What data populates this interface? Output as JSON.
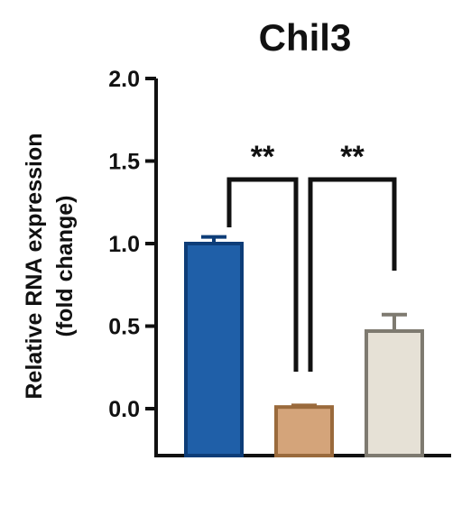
{
  "chart_data": {
    "type": "bar",
    "title": "Chil3",
    "ylabel": "Relative RNA expression",
    "ylabel_line2": "(fold change)",
    "xlabel": "",
    "ylim": [
      -0.25,
      2.0
    ],
    "y_ticks": [
      "0.0",
      "0.5",
      "1.0",
      "1.5",
      "2.0"
    ],
    "y_tick_values": [
      0.0,
      0.5,
      1.0,
      1.5,
      2.0
    ],
    "series": [
      {
        "values": [
          1.0,
          0.01,
          0.47
        ],
        "errors": [
          0.04,
          0.01,
          0.1
        ],
        "colors": [
          "#1f5fa8",
          "#d4a47a",
          "#e6e1d6"
        ],
        "edge_colors": [
          "#0d3d78",
          "#9a6a3c",
          "#7e7a70"
        ]
      }
    ],
    "significance": [
      {
        "from": 0,
        "to": 1,
        "label": "**"
      },
      {
        "from": 1,
        "to": 2,
        "label": "**"
      }
    ],
    "grid": false,
    "legend": "none"
  }
}
